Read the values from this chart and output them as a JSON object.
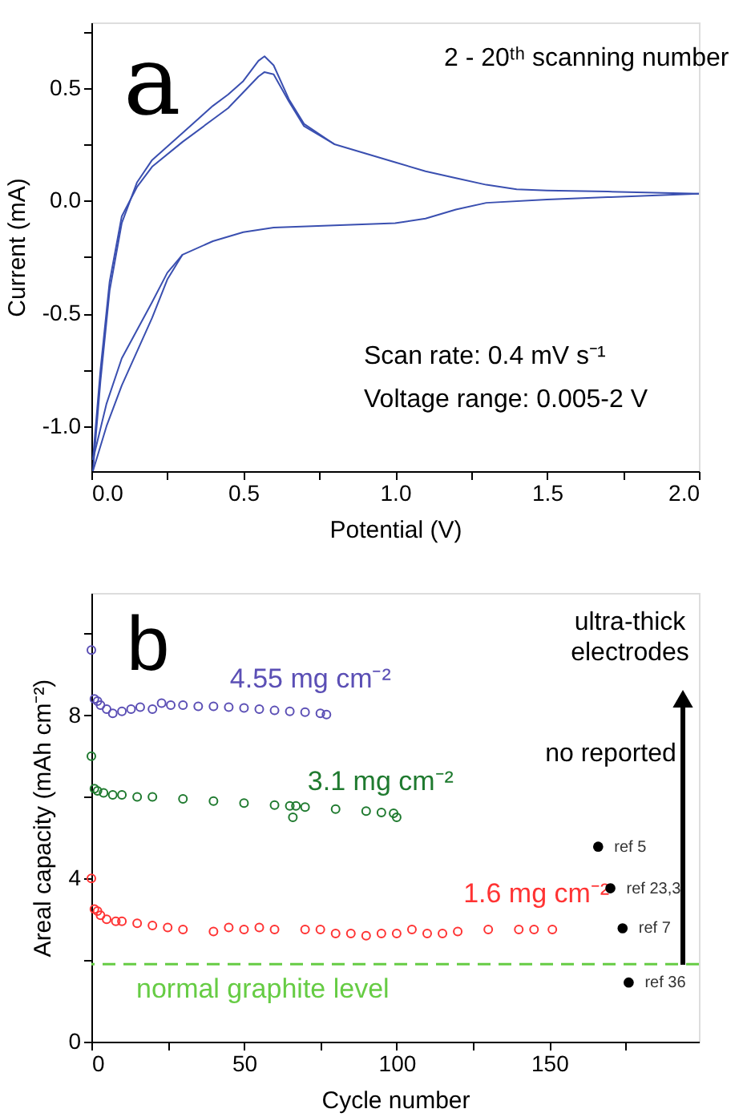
{
  "chart_data": [
    {
      "type": "line",
      "xlabel": "Potential (V)",
      "ylabel": "Current (mA)",
      "xlim": [
        0,
        2
      ],
      "ylim": [
        -1.2,
        0.79
      ],
      "xticks": [
        {
          "value": 0,
          "label": "0.0"
        },
        {
          "value": 0.25,
          "label": null
        },
        {
          "value": 0.5,
          "label": "0.5"
        },
        {
          "value": 0.75,
          "label": null
        },
        {
          "value": 1,
          "label": "1.0"
        },
        {
          "value": 1.25,
          "label": null
        },
        {
          "value": 1.5,
          "label": "1.5"
        },
        {
          "value": 1.75,
          "label": null
        },
        {
          "value": 2,
          "label": "2.0"
        }
      ],
      "yticks": [
        {
          "value": -1,
          "label": "-1.0"
        },
        {
          "value": -0.75,
          "label": null
        },
        {
          "value": -0.5,
          "label": "-0.5"
        },
        {
          "value": -0.25,
          "label": null
        },
        {
          "value": 0,
          "label": "0.0"
        },
        {
          "value": 0.25,
          "label": null
        },
        {
          "value": 0.5,
          "label": "0.5"
        },
        {
          "value": 0.75,
          "label": null
        }
      ],
      "grid": false,
      "legend": false,
      "marker": "none",
      "line_style": "solid",
      "annotations": [
        "a",
        "2 - 20ᵗʰ scanning number",
        "Scan rate: 0.4 mV s⁻¹",
        "Voltage range: 0.005-2 V"
      ],
      "series": [
        {
          "color": "#3a4fb0",
          "x": [
            0.005,
            0.03,
            0.06,
            0.1,
            0.15,
            0.2,
            0.3,
            0.4,
            0.45,
            0.5,
            0.55,
            0.57,
            0.6,
            0.65,
            0.7,
            0.8,
            0.9,
            1.0,
            1.1,
            1.2,
            1.3,
            1.4,
            1.5,
            1.7,
            2.0
          ],
          "values": [
            -1.2,
            -0.8,
            -0.4,
            -0.1,
            0.08,
            0.18,
            0.3,
            0.42,
            0.47,
            0.53,
            0.62,
            0.64,
            0.6,
            0.45,
            0.34,
            0.25,
            0.21,
            0.17,
            0.13,
            0.1,
            0.07,
            0.05,
            0.045,
            0.04,
            0.03
          ]
        },
        {
          "color": "#3a4fb0",
          "x": [
            0.005,
            0.05,
            0.1,
            0.2,
            0.25,
            0.3,
            0.4,
            0.5,
            0.6,
            0.8,
            1.0,
            1.1,
            1.2,
            1.3,
            1.5,
            1.7,
            2.0
          ],
          "values": [
            -1.2,
            -1.0,
            -0.82,
            -0.52,
            -0.35,
            -0.24,
            -0.18,
            -0.14,
            -0.12,
            -0.11,
            -0.1,
            -0.08,
            -0.04,
            -0.01,
            0.005,
            0.015,
            0.03
          ]
        },
        {
          "color": "#3a4fb0",
          "x": [
            0.005,
            0.03,
            0.06,
            0.1,
            0.15,
            0.2,
            0.3,
            0.4,
            0.45,
            0.5,
            0.55,
            0.57,
            0.6,
            0.65,
            0.7,
            0.8
          ],
          "values": [
            -1.15,
            -0.75,
            -0.36,
            -0.07,
            0.06,
            0.15,
            0.26,
            0.36,
            0.41,
            0.48,
            0.55,
            0.57,
            0.56,
            0.44,
            0.33,
            0.25
          ]
        },
        {
          "color": "#3a4fb0",
          "x": [
            0.005,
            0.05,
            0.1,
            0.2,
            0.25,
            0.3
          ],
          "values": [
            -1.15,
            -0.9,
            -0.7,
            -0.45,
            -0.32,
            -0.24
          ]
        }
      ]
    },
    {
      "type": "scatter",
      "xlabel": "Cycle number",
      "ylabel": "Areal capacity (mAh cm⁻²)",
      "xlim": [
        0,
        199
      ],
      "ylim": [
        0,
        11
      ],
      "xticks": [
        0,
        {
          "value": 25,
          "label": null
        },
        50,
        {
          "value": 75,
          "label": null
        },
        100,
        {
          "value": 125,
          "label": null
        },
        150,
        {
          "value": 175,
          "label": null
        }
      ],
      "yticks": [
        0,
        {
          "value": 2,
          "label": null
        },
        4,
        {
          "value": 6,
          "label": null
        },
        8,
        {
          "value": 10,
          "label": null
        }
      ],
      "grid": false,
      "legend": false,
      "marker": "circle",
      "annotations": [
        "b",
        "ultra-thick\nelectrodes",
        "no reported"
      ],
      "ref_lines": [
        {
          "axis": "y",
          "value": 1.9,
          "label": "normal graphite level",
          "color": "#66cc44",
          "line_style": "dashed"
        }
      ],
      "series": [
        {
          "name": "4.55 mg cm⁻²",
          "color": "#5b4fb5",
          "x": [
            0,
            1,
            2,
            3,
            5,
            7,
            10,
            13,
            16,
            20,
            23,
            26,
            30,
            35,
            40,
            45,
            50,
            55,
            60,
            65,
            70,
            75,
            77
          ],
          "values": [
            9.6,
            8.4,
            8.35,
            8.25,
            8.15,
            8.05,
            8.1,
            8.15,
            8.2,
            8.15,
            8.3,
            8.25,
            8.25,
            8.22,
            8.22,
            8.2,
            8.18,
            8.15,
            8.12,
            8.1,
            8.08,
            8.05,
            8.02
          ]
        },
        {
          "name": "3.1 mg cm⁻²",
          "color": "#1f7a2f",
          "x": [
            0,
            1,
            2,
            4,
            7,
            10,
            15,
            20,
            30,
            40,
            50,
            60,
            65,
            66,
            67,
            70,
            80,
            90,
            95,
            99,
            100
          ],
          "values": [
            7.0,
            6.2,
            6.15,
            6.1,
            6.05,
            6.05,
            6.0,
            6.0,
            5.95,
            5.9,
            5.85,
            5.8,
            5.78,
            5.5,
            5.78,
            5.75,
            5.7,
            5.65,
            5.62,
            5.6,
            5.5
          ]
        },
        {
          "name": "1.6 mg cm⁻²",
          "color": "#ff3333",
          "x": [
            0,
            1,
            2,
            3,
            5,
            8,
            10,
            15,
            20,
            25,
            30,
            40,
            45,
            50,
            55,
            60,
            70,
            75,
            80,
            85,
            90,
            95,
            100,
            105,
            110,
            115,
            120,
            130,
            140,
            145,
            151
          ],
          "values": [
            4.0,
            3.25,
            3.2,
            3.1,
            3.0,
            2.95,
            2.95,
            2.9,
            2.85,
            2.8,
            2.75,
            2.7,
            2.8,
            2.75,
            2.8,
            2.75,
            2.75,
            2.75,
            2.65,
            2.65,
            2.6,
            2.65,
            2.65,
            2.75,
            2.65,
            2.65,
            2.7,
            2.75,
            2.75,
            2.75,
            2.75
          ]
        },
        {
          "color": "#000000",
          "x": [
            166,
            170,
            174,
            176
          ],
          "values": [
            4.78,
            3.76,
            2.78,
            1.45
          ],
          "value_labels": [
            "ref 5",
            "ref 23,3",
            "ref 7",
            "ref 36"
          ]
        }
      ]
    }
  ]
}
